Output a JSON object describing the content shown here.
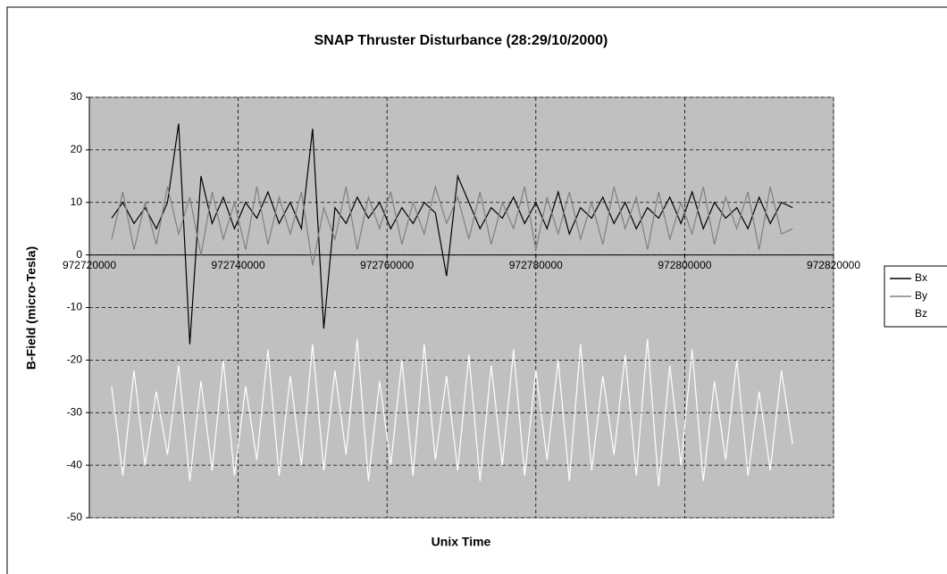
{
  "chart_data": {
    "type": "line",
    "title": "SNAP Thruster Disturbance (28:29/10/2000)",
    "x_label": "Unix Time",
    "y_label": "B-Field (micro-Tesla)",
    "x": [
      972723000,
      972724500,
      972726000,
      972727500,
      972729000,
      972730500,
      972732000,
      972733500,
      972735000,
      972736500,
      972738000,
      972739500,
      972741000,
      972742500,
      972744000,
      972745500,
      972747000,
      972748500,
      972750000,
      972751500,
      972753000,
      972754500,
      972756000,
      972757500,
      972759000,
      972760500,
      972762000,
      972763500,
      972765000,
      972766500,
      972768000,
      972769500,
      972771000,
      972772500,
      972774000,
      972775500,
      972777000,
      972778500,
      972780000,
      972781500,
      972783000,
      972784500,
      972786000,
      972787500,
      972789000,
      972790500,
      972792000,
      972793500,
      972795000,
      972796500,
      972798000,
      972799500,
      972801000,
      972802500,
      972804000,
      972805500,
      972807000,
      972808500,
      972810000,
      972811500,
      972813000,
      972814500
    ],
    "series": [
      {
        "name": "Bx",
        "color": "#000000",
        "values": [
          7,
          10,
          6,
          9,
          5,
          10,
          25,
          -17,
          15,
          6,
          11,
          5,
          10,
          7,
          12,
          6,
          10,
          5,
          24,
          -14,
          9,
          6,
          11,
          7,
          10,
          5,
          9,
          6,
          10,
          8,
          -4,
          15,
          10,
          5,
          9,
          7,
          11,
          6,
          10,
          5,
          12,
          4,
          9,
          7,
          11,
          6,
          10,
          5,
          9,
          7,
          11,
          6,
          12,
          5,
          10,
          7,
          9,
          5,
          11,
          6,
          10,
          9
        ]
      },
      {
        "name": "By",
        "color": "#808080",
        "values": [
          3,
          12,
          1,
          10,
          2,
          13,
          4,
          11,
          0,
          12,
          3,
          10,
          1,
          13,
          2,
          11,
          4,
          12,
          -2,
          9,
          3,
          13,
          1,
          11,
          5,
          12,
          2,
          10,
          4,
          13,
          6,
          11,
          3,
          12,
          2,
          10,
          5,
          13,
          1,
          11,
          4,
          12,
          3,
          10,
          2,
          13,
          5,
          11,
          1,
          12,
          3,
          10,
          4,
          13,
          2,
          11,
          5,
          12,
          1,
          13,
          4,
          5
        ]
      },
      {
        "name": "Bz",
        "color": "#ffffff",
        "values": [
          -25,
          -42,
          -22,
          -40,
          -26,
          -38,
          -21,
          -43,
          -24,
          -41,
          -20,
          -42,
          -25,
          -39,
          -18,
          -42,
          -23,
          -40,
          -17,
          -41,
          -22,
          -38,
          -16,
          -43,
          -24,
          -40,
          -20,
          -42,
          -17,
          -39,
          -23,
          -41,
          -19,
          -43,
          -21,
          -40,
          -18,
          -42,
          -22,
          -39,
          -20,
          -43,
          -17,
          -41,
          -23,
          -38,
          -19,
          -42,
          -16,
          -44,
          -21,
          -40,
          -18,
          -43,
          -24,
          -39,
          -20,
          -42,
          -26,
          -41,
          -22,
          -36
        ]
      }
    ],
    "xlim": [
      972720000,
      972820000
    ],
    "xticks": [
      972720000,
      972740000,
      972760000,
      972780000,
      972800000,
      972820000
    ],
    "ylim": [
      -50,
      30
    ],
    "yticks": [
      -50,
      -40,
      -30,
      -20,
      -10,
      0,
      10,
      20,
      30
    ],
    "grid": true,
    "plot_background": "#c0c0c0",
    "legend": "right"
  }
}
